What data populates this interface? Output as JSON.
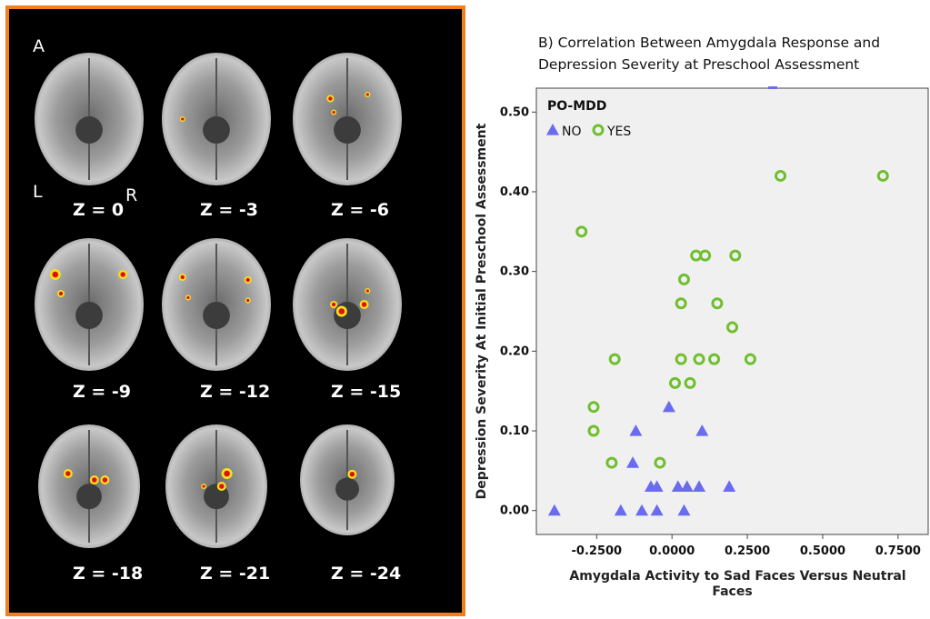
{
  "figure": {
    "panel_label": "A",
    "left_label": "L",
    "right_label": "R",
    "slice_labels": [
      "Z = 0",
      "Z = -3",
      "Z = -6",
      "Z = -9",
      "Z = -12",
      "Z = -15",
      "Z = -18",
      "Z = -21",
      "Z = -24"
    ]
  },
  "colors": {
    "panel_border": "#f0801e",
    "activation_core": "#e01010",
    "activation_edge": "#f7e21b",
    "no_marker": "#6b6bf0",
    "yes_marker": "#6fbf2e",
    "plot_bg": "#f0f0f0"
  },
  "chart_data": {
    "type": "scatter",
    "title_line1": "B) Correlation Between Amygdala Response and",
    "title_line2": "Depression Severity at Preschool Assessment",
    "xlabel_line1": "Amygdala Activity to Sad Faces Versus Neutral",
    "xlabel_line2": "Faces",
    "ylabel": "Depression Severity At Initial Preschool Assessment",
    "xlim": [
      -0.45,
      0.85
    ],
    "ylim": [
      -0.03,
      0.53
    ],
    "x_ticks": [
      "-0.2500",
      "0.0000",
      "0.2500",
      "0.5000",
      "0.7500"
    ],
    "x_tick_values": [
      -0.25,
      0,
      0.25,
      0.5,
      0.75
    ],
    "y_ticks": [
      "0.00",
      "0.10",
      "0.20",
      "0.30",
      "0.40",
      "0.50"
    ],
    "y_tick_values": [
      0,
      0.1,
      0.2,
      0.3,
      0.4,
      0.5
    ],
    "legend_title": "PO-MDD",
    "grid": false,
    "series": [
      {
        "name": "NO",
        "marker": "triangle",
        "points": [
          [
            -0.39,
            0.0
          ],
          [
            -0.17,
            0.0
          ],
          [
            -0.1,
            0.0
          ],
          [
            -0.05,
            0.0
          ],
          [
            0.04,
            0.0
          ],
          [
            -0.07,
            0.03
          ],
          [
            -0.05,
            0.03
          ],
          [
            0.02,
            0.03
          ],
          [
            0.05,
            0.03
          ],
          [
            0.09,
            0.03
          ],
          [
            0.19,
            0.03
          ],
          [
            -0.13,
            0.06
          ],
          [
            -0.12,
            0.1
          ],
          [
            0.1,
            0.1
          ],
          [
            -0.01,
            0.13
          ]
        ]
      },
      {
        "name": "YES",
        "marker": "circle",
        "points": [
          [
            -0.3,
            0.35
          ],
          [
            -0.26,
            0.13
          ],
          [
            -0.26,
            0.1
          ],
          [
            -0.2,
            0.06
          ],
          [
            -0.04,
            0.06
          ],
          [
            -0.19,
            0.19
          ],
          [
            0.01,
            0.16
          ],
          [
            0.06,
            0.16
          ],
          [
            0.03,
            0.19
          ],
          [
            0.09,
            0.19
          ],
          [
            0.14,
            0.19
          ],
          [
            0.26,
            0.19
          ],
          [
            0.2,
            0.23
          ],
          [
            0.03,
            0.26
          ],
          [
            0.15,
            0.26
          ],
          [
            0.04,
            0.29
          ],
          [
            0.08,
            0.32
          ],
          [
            0.11,
            0.32
          ],
          [
            0.21,
            0.32
          ],
          [
            0.36,
            0.42
          ],
          [
            0.7,
            0.42
          ]
        ]
      }
    ]
  }
}
